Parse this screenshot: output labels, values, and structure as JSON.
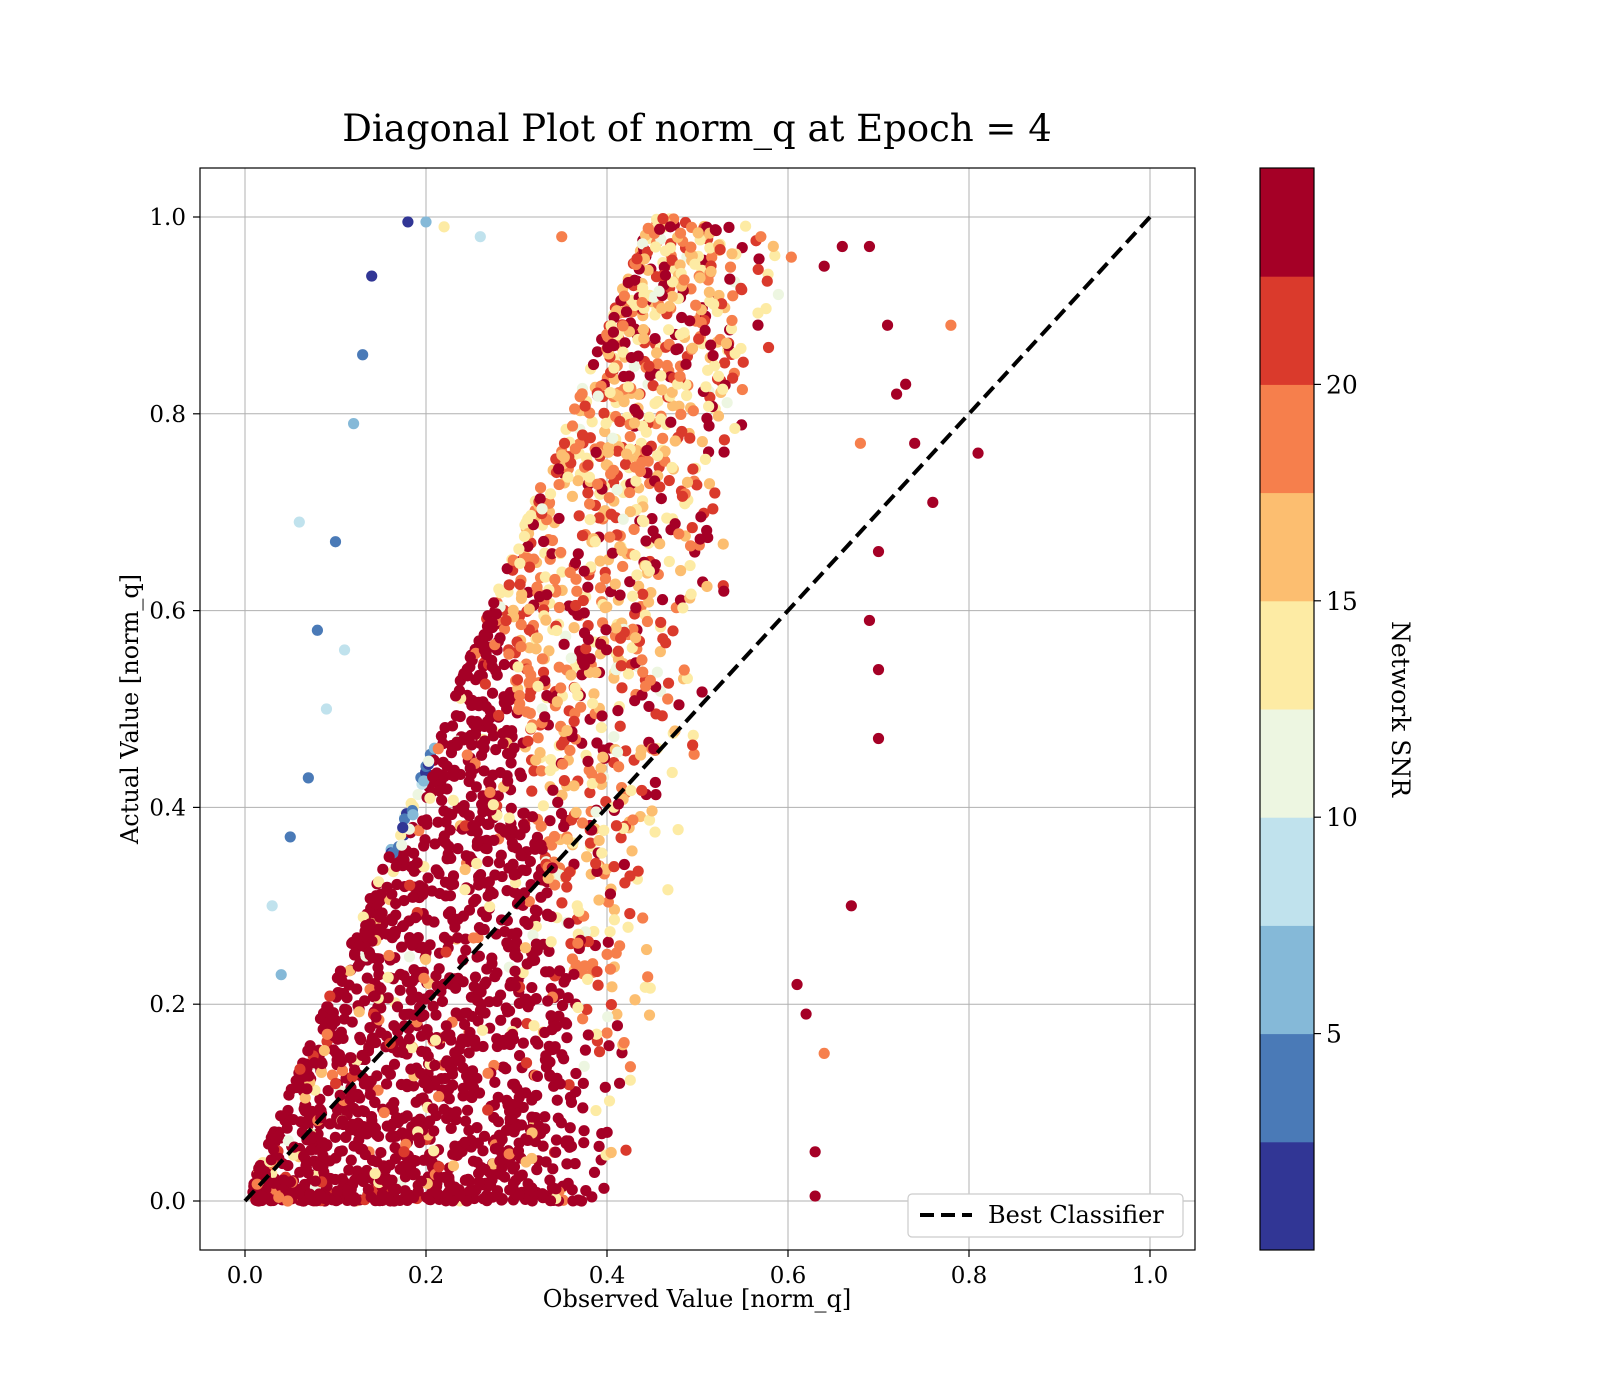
{
  "chart_data": {
    "type": "scatter",
    "title": "Diagonal Plot of norm_q at Epoch = 4",
    "xlabel": "Observed Value [norm_q]",
    "ylabel": "Actual Value [norm_q]",
    "xlim": [
      -0.05,
      1.05
    ],
    "ylim": [
      -0.05,
      1.05
    ],
    "xticks": [
      "0.0",
      "0.2",
      "0.4",
      "0.6",
      "0.8",
      "1.0"
    ],
    "yticks": [
      "0.0",
      "0.2",
      "0.4",
      "0.6",
      "0.8",
      "1.0"
    ],
    "grid": true,
    "reference_line": {
      "label": "Best Classifier",
      "x": [
        0,
        1
      ],
      "y": [
        0,
        1
      ],
      "color": "#000000",
      "style": "dashed"
    },
    "legend": {
      "position": "bottom-right",
      "entries": [
        "Best Classifier"
      ]
    },
    "colorbar": {
      "label": "Network SNR",
      "range": [
        0,
        25
      ],
      "ticks": [
        "5",
        "10",
        "15",
        "20"
      ],
      "tick_values": [
        5,
        10,
        15,
        20
      ],
      "colors": [
        "#313695",
        "#4575b4",
        "#74add1",
        "#abd9e9",
        "#e0f3f8",
        "#ffffbf",
        "#fee090",
        "#fdae61",
        "#f46d43",
        "#d73027",
        "#a50026"
      ],
      "bands": [
        "#313695",
        "#4a7ab7",
        "#85b9d8",
        "#c0e2ed",
        "#edf6e1",
        "#fdeba4",
        "#fcbe70",
        "#f67f4c",
        "#da3a2c",
        "#a50026"
      ]
    },
    "points": [
      [
        0.06,
        0.69,
        8
      ],
      [
        0.1,
        0.67,
        3
      ],
      [
        0.08,
        0.58,
        4
      ],
      [
        0.13,
        0.86,
        3
      ],
      [
        0.14,
        0.94,
        2
      ],
      [
        0.18,
        0.995,
        2
      ],
      [
        0.2,
        0.995,
        7
      ],
      [
        0.12,
        0.79,
        7
      ],
      [
        0.22,
        0.99,
        13
      ],
      [
        0.26,
        0.98,
        9
      ],
      [
        0.71,
        0.89,
        24
      ],
      [
        0.78,
        0.89,
        18
      ],
      [
        0.81,
        0.76,
        24
      ],
      [
        0.76,
        0.71,
        24
      ],
      [
        0.74,
        0.77,
        24
      ],
      [
        0.73,
        0.83,
        24
      ],
      [
        0.72,
        0.82,
        24
      ],
      [
        0.69,
        0.97,
        24
      ],
      [
        0.66,
        0.97,
        24
      ],
      [
        0.64,
        0.95,
        24
      ],
      [
        0.57,
        0.98,
        18
      ],
      [
        0.47,
        0.99,
        24
      ],
      [
        0.35,
        0.98,
        18
      ],
      [
        0.63,
        0.05,
        24
      ],
      [
        0.63,
        0.005,
        24
      ],
      [
        0.67,
        0.3,
        24
      ],
      [
        0.64,
        0.15,
        18
      ],
      [
        0.62,
        0.19,
        24
      ],
      [
        0.61,
        0.22,
        24
      ],
      [
        0.03,
        0.3,
        8
      ],
      [
        0.04,
        0.23,
        7
      ],
      [
        0.7,
        0.47,
        24
      ],
      [
        0.7,
        0.54,
        24
      ],
      [
        0.69,
        0.59,
        24
      ],
      [
        0.7,
        0.66,
        24
      ],
      [
        0.68,
        0.77,
        18
      ],
      [
        0.05,
        0.37,
        3
      ],
      [
        0.07,
        0.43,
        4
      ],
      [
        0.09,
        0.5,
        8
      ],
      [
        0.11,
        0.56,
        9
      ]
    ]
  }
}
